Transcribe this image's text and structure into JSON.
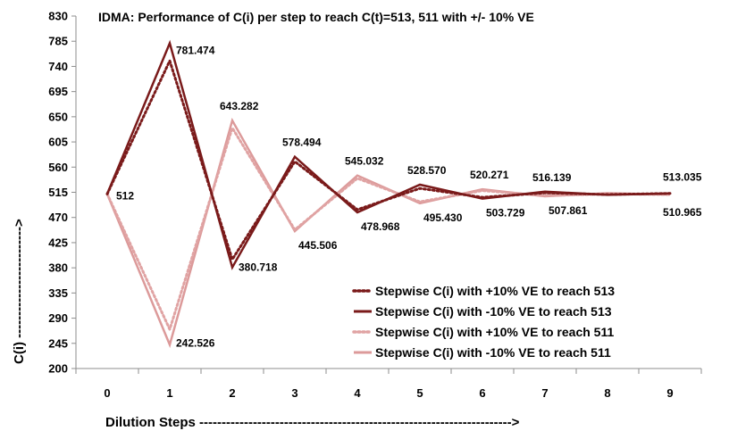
{
  "chart_data": {
    "type": "line",
    "title": "IDMA: Performance of C(i) per step to reach C(t)=513, 511 with +/- 10% VE",
    "xlabel": "Dilution Steps ---------------------------------------------------------------------->",
    "ylabel": "C(i) ------------------------->",
    "x": [
      0,
      1,
      2,
      3,
      4,
      5,
      6,
      7,
      8,
      9
    ],
    "ylim": [
      200,
      830
    ],
    "yticks": [
      200,
      245,
      290,
      335,
      380,
      425,
      470,
      515,
      560,
      605,
      650,
      695,
      740,
      785,
      830
    ],
    "grid": false,
    "legend_position": "bottom-right",
    "series": [
      {
        "name": "Stepwise C(i) with +10% VE to reach 513",
        "color": "#7a1a1a",
        "style": "dotted",
        "values": [
          512,
          750,
          395,
          570,
          484,
          522,
          506,
          514,
          511,
          513
        ]
      },
      {
        "name": "Stepwise C(i) with -10% VE to reach 513",
        "color": "#7a1a1a",
        "style": "solid",
        "values": [
          512,
          781.474,
          380.718,
          578.494,
          478.968,
          528.57,
          503.729,
          516.139,
          510.5,
          513.035
        ]
      },
      {
        "name": "Stepwise C(i) with +10% VE to reach 511",
        "color": "#e0a3a3",
        "style": "dotted",
        "values": [
          512,
          270,
          630,
          448,
          540,
          498,
          518,
          509,
          512,
          511
        ]
      },
      {
        "name": "Stepwise C(i) with -10% VE to reach 511",
        "color": "#dc9a9a",
        "style": "solid",
        "values": [
          512,
          242.526,
          643.282,
          445.506,
          545.032,
          495.43,
          520.271,
          507.861,
          513.5,
          510.965
        ]
      }
    ],
    "data_labels": [
      {
        "x": 0,
        "y": 512,
        "text": "512"
      },
      {
        "x": 1,
        "y": 781.474,
        "text": "781.474"
      },
      {
        "x": 1,
        "y": 242.526,
        "text": "242.526"
      },
      {
        "x": 2,
        "y": 643.282,
        "text": "643.282"
      },
      {
        "x": 2,
        "y": 380.718,
        "text": "380.718"
      },
      {
        "x": 3,
        "y": 578.494,
        "text": "578.494"
      },
      {
        "x": 3,
        "y": 445.506,
        "text": "445.506"
      },
      {
        "x": 4,
        "y": 545.032,
        "text": "545.032"
      },
      {
        "x": 4,
        "y": 478.968,
        "text": "478.968"
      },
      {
        "x": 5,
        "y": 528.57,
        "text": "528.570"
      },
      {
        "x": 5,
        "y": 495.43,
        "text": "495.430"
      },
      {
        "x": 6,
        "y": 520.271,
        "text": "520.271"
      },
      {
        "x": 6,
        "y": 503.729,
        "text": "503.729"
      },
      {
        "x": 7,
        "y": 516.139,
        "text": "516.139"
      },
      {
        "x": 7,
        "y": 507.861,
        "text": "507.861"
      },
      {
        "x": 9,
        "y": 513.035,
        "text": "513.035"
      },
      {
        "x": 9,
        "y": 510.965,
        "text": "510.965"
      }
    ]
  }
}
